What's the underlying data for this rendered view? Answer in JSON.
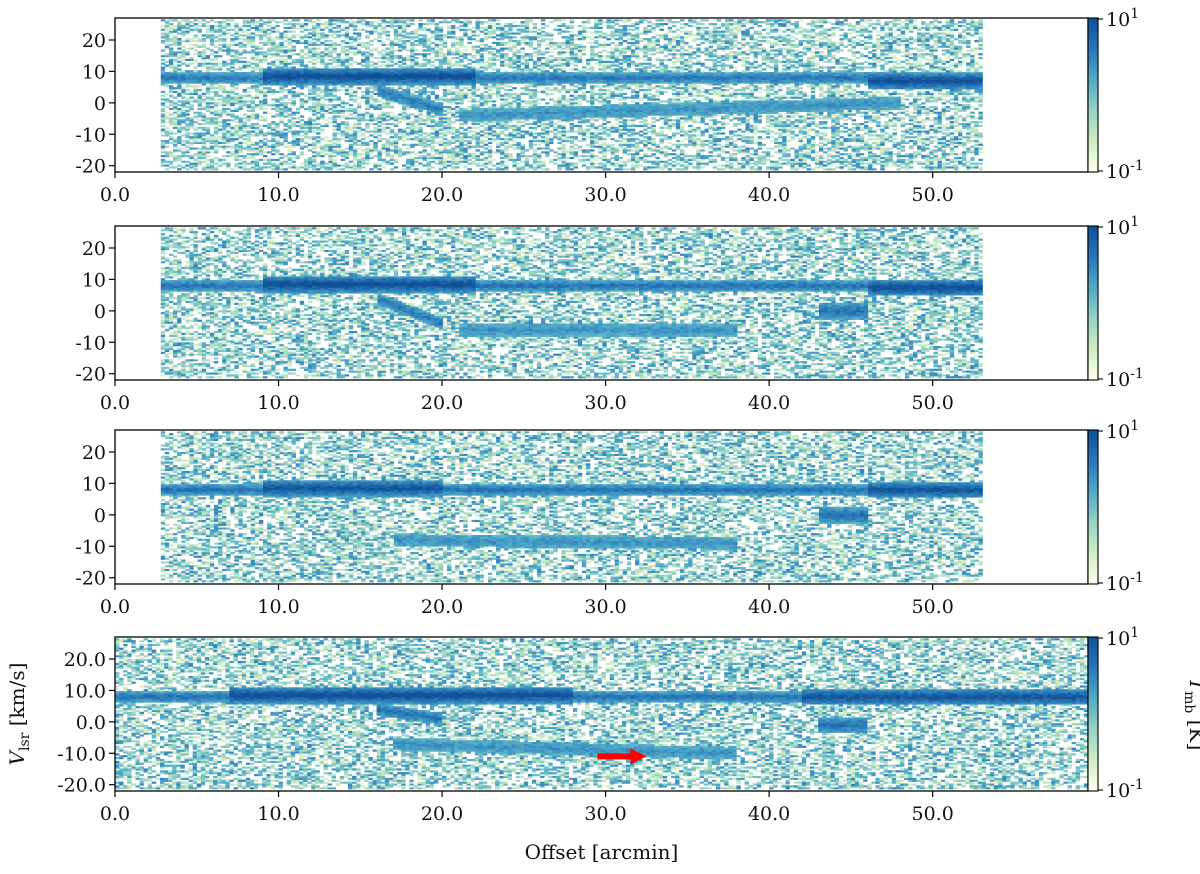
{
  "chart_data": [
    {
      "type": "heatmap",
      "panel": 1,
      "x_range": [
        0.0,
        59.5
      ],
      "data_x_extent": [
        2.8,
        53.0
      ],
      "y_range": [
        -22,
        27
      ],
      "x_ticks": [
        "0.0",
        "10.0",
        "20.0",
        "30.0",
        "40.0",
        "50.0"
      ],
      "x_tick_values": [
        0,
        10,
        20,
        30,
        40,
        50
      ],
      "y_ticks": [
        "20",
        "10",
        "0",
        "-10",
        "-20"
      ],
      "y_tick_values": [
        20,
        10,
        0,
        -10,
        -20
      ],
      "colorbar": {
        "scale": "log",
        "min": 0.1,
        "max": 10,
        "ticks": [
          "10",
          "10"
        ],
        "tick_exponents": [
          "1",
          "-1"
        ]
      },
      "features": [
        {
          "kind": "band",
          "x": [
            2.8,
            53.0
          ],
          "v": 8.0,
          "intensity": 0.55
        },
        {
          "kind": "blob",
          "x": [
            9.0,
            22.0
          ],
          "v": 8.5,
          "intensity": 1.0
        },
        {
          "kind": "blob",
          "x": [
            46.0,
            53.0
          ],
          "v": 7.0,
          "intensity": 1.0
        },
        {
          "kind": "streak",
          "x": [
            16.0,
            20.0
          ],
          "v": [
            4.0,
            -2.0
          ],
          "intensity": 0.5
        },
        {
          "kind": "streak",
          "x": [
            21.0,
            48.0
          ],
          "v": [
            -4.0,
            0.0
          ],
          "intensity": 0.3
        }
      ]
    },
    {
      "type": "heatmap",
      "panel": 2,
      "x_range": [
        0.0,
        59.5
      ],
      "data_x_extent": [
        2.8,
        53.0
      ],
      "y_range": [
        -22,
        27
      ],
      "x_ticks": [
        "0.0",
        "10.0",
        "20.0",
        "30.0",
        "40.0",
        "50.0"
      ],
      "x_tick_values": [
        0,
        10,
        20,
        30,
        40,
        50
      ],
      "y_ticks": [
        "20",
        "10",
        "0",
        "-10",
        "-20"
      ],
      "y_tick_values": [
        20,
        10,
        0,
        -10,
        -20
      ],
      "colorbar": {
        "scale": "log",
        "min": 0.1,
        "max": 10,
        "ticks": [
          "10",
          "10"
        ],
        "tick_exponents": [
          "1",
          "-1"
        ]
      },
      "features": [
        {
          "kind": "band",
          "x": [
            2.8,
            53.0
          ],
          "v": 8.0,
          "intensity": 0.6
        },
        {
          "kind": "blob",
          "x": [
            9.0,
            22.0
          ],
          "v": 8.5,
          "intensity": 1.0
        },
        {
          "kind": "blob",
          "x": [
            46.0,
            53.0
          ],
          "v": 7.5,
          "intensity": 1.0
        },
        {
          "kind": "streak",
          "x": [
            16.0,
            20.0
          ],
          "v": [
            4.0,
            -4.0
          ],
          "intensity": 0.5
        },
        {
          "kind": "blob",
          "x": [
            43.0,
            46.0
          ],
          "v": 0.0,
          "intensity": 0.6
        },
        {
          "kind": "streak",
          "x": [
            21.0,
            38.0
          ],
          "v": [
            -6.0,
            -6.0
          ],
          "intensity": 0.3
        }
      ]
    },
    {
      "type": "heatmap",
      "panel": 3,
      "x_range": [
        0.0,
        59.5
      ],
      "data_x_extent": [
        2.8,
        53.0
      ],
      "y_range": [
        -22,
        27
      ],
      "x_ticks": [
        "0.0",
        "10.0",
        "20.0",
        "30.0",
        "40.0",
        "50.0"
      ],
      "x_tick_values": [
        0,
        10,
        20,
        30,
        40,
        50
      ],
      "y_ticks": [
        "20",
        "10",
        "0",
        "-10",
        "-20"
      ],
      "y_tick_values": [
        20,
        10,
        0,
        -10,
        -20
      ],
      "colorbar": {
        "scale": "log",
        "min": 0.1,
        "max": 10,
        "ticks": [
          "10",
          "10"
        ],
        "tick_exponents": [
          "1",
          "-1"
        ]
      },
      "features": [
        {
          "kind": "band",
          "x": [
            2.8,
            53.0
          ],
          "v": 8.0,
          "intensity": 0.6
        },
        {
          "kind": "blob",
          "x": [
            9.0,
            20.0
          ],
          "v": 8.5,
          "intensity": 0.9
        },
        {
          "kind": "blob",
          "x": [
            46.0,
            53.0
          ],
          "v": 8.0,
          "intensity": 0.9
        },
        {
          "kind": "blob",
          "x": [
            43.0,
            46.0
          ],
          "v": 0.0,
          "intensity": 0.6
        },
        {
          "kind": "streak",
          "x": [
            17.0,
            38.0
          ],
          "v": [
            -8.0,
            -9.0
          ],
          "intensity": 0.3
        }
      ]
    },
    {
      "type": "heatmap",
      "panel": 4,
      "x_range": [
        0.0,
        59.5
      ],
      "data_x_extent": [
        0.0,
        59.5
      ],
      "y_range": [
        -22,
        27
      ],
      "xlabel": "Offset [arcmin]",
      "ylabel": {
        "main": "V",
        "sub": "lsr",
        "unit": " [km/s]"
      },
      "x_ticks": [
        "0.0",
        "10.0",
        "20.0",
        "30.0",
        "40.0",
        "50.0"
      ],
      "x_tick_values": [
        0,
        10,
        20,
        30,
        40,
        50
      ],
      "y_ticks": [
        "20.0",
        "10.0",
        "0.0",
        "-10.0",
        "-20.0"
      ],
      "y_tick_values": [
        20,
        10,
        0,
        -10,
        -20
      ],
      "colorbar": {
        "scale": "log",
        "min": 0.1,
        "max": 10,
        "ticks": [
          "10",
          "10"
        ],
        "tick_exponents": [
          "1",
          "-1"
        ],
        "label": {
          "main": "T",
          "sub": "mb",
          "unit": " [K]"
        }
      },
      "annotation": {
        "kind": "arrow",
        "color": "#ff0000",
        "x_from": 29.5,
        "x_to": 32.5,
        "v": -11.0
      },
      "features": [
        {
          "kind": "band",
          "x": [
            0.0,
            59.5
          ],
          "v": 8.0,
          "intensity": 0.6
        },
        {
          "kind": "blob",
          "x": [
            7.0,
            28.0
          ],
          "v": 8.5,
          "intensity": 1.0
        },
        {
          "kind": "blob",
          "x": [
            42.0,
            59.5
          ],
          "v": 8.0,
          "intensity": 0.9
        },
        {
          "kind": "streak",
          "x": [
            16.0,
            20.0
          ],
          "v": [
            4.0,
            1.0
          ],
          "intensity": 0.6
        },
        {
          "kind": "blob",
          "x": [
            43.0,
            46.0
          ],
          "v": -1.0,
          "intensity": 0.6
        },
        {
          "kind": "streak",
          "x": [
            17.0,
            38.0
          ],
          "v": [
            -7.0,
            -10.0
          ],
          "intensity": 0.3
        }
      ]
    }
  ]
}
